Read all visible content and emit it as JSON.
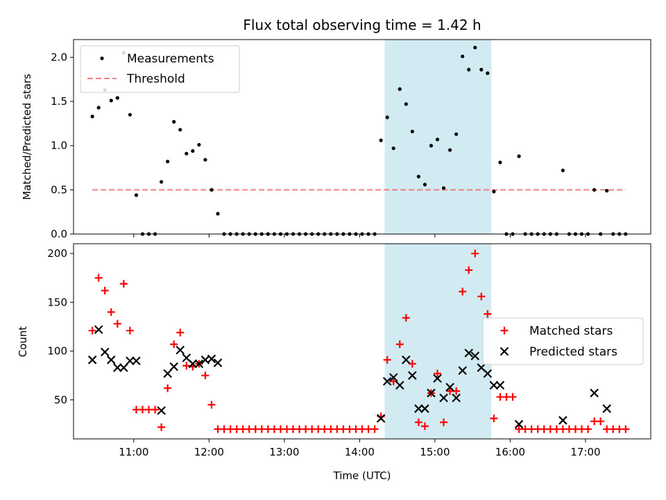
{
  "chart_data": [
    {
      "type": "scatter",
      "title": "Flux total observing time = 1.42 h",
      "ylabel": "Matched/Predicted stars",
      "xlabel": "",
      "ylim": [
        0,
        2.2
      ],
      "xlim": [
        "10:12",
        "17:52"
      ],
      "grid": false,
      "legend": "top-left",
      "highlight_span": {
        "start": "14:20",
        "end": "15:45",
        "color": "#add8e6"
      },
      "xticks": [
        "11:00",
        "12:00",
        "13:00",
        "14:00",
        "15:00",
        "16:00",
        "17:00"
      ],
      "yticks": [
        "0.0",
        "0.5",
        "1.0",
        "1.5",
        "2.0"
      ],
      "series": [
        {
          "name": "Measurements",
          "color": "#000000",
          "marker": "dot",
          "x": [
            "10:27",
            "10:32",
            "10:37",
            "10:42",
            "10:47",
            "10:52",
            "10:57",
            "11:02",
            "11:07",
            "11:12",
            "11:17",
            "11:22",
            "11:27",
            "11:32",
            "11:37",
            "11:42",
            "11:47",
            "11:52",
            "11:57",
            "12:02",
            "12:07",
            "12:12",
            "12:17",
            "12:22",
            "12:27",
            "12:32",
            "12:37",
            "12:42",
            "12:47",
            "12:52",
            "12:57",
            "13:02",
            "13:07",
            "13:12",
            "13:17",
            "13:22",
            "13:27",
            "13:32",
            "13:37",
            "13:42",
            "13:47",
            "13:52",
            "13:57",
            "14:02",
            "14:07",
            "14:12",
            "14:17",
            "14:22",
            "14:27",
            "14:32",
            "14:37",
            "14:42",
            "14:47",
            "14:52",
            "14:57",
            "15:02",
            "15:07",
            "15:12",
            "15:17",
            "15:22",
            "15:27",
            "15:32",
            "15:37",
            "15:42",
            "15:47",
            "15:52",
            "15:57",
            "16:02",
            "16:07",
            "16:12",
            "16:17",
            "16:22",
            "16:27",
            "16:32",
            "16:37",
            "16:42",
            "16:47",
            "16:52",
            "16:57",
            "17:02",
            "17:07",
            "17:12",
            "17:17",
            "17:22",
            "17:27",
            "17:32"
          ],
          "y": [
            1.33,
            1.43,
            1.63,
            1.51,
            1.54,
            2.05,
            1.35,
            0.44,
            0,
            0,
            0,
            0.59,
            0.82,
            1.27,
            1.18,
            0.91,
            0.94,
            1.01,
            0.84,
            0.5,
            0.23,
            0,
            0,
            0,
            0,
            0,
            0,
            0,
            0,
            0,
            0,
            0,
            0,
            0,
            0,
            0,
            0,
            0,
            0,
            0,
            0,
            0,
            0,
            0,
            0,
            0,
            1.06,
            1.32,
            0.97,
            1.64,
            1.47,
            1.16,
            0.65,
            0.56,
            1.0,
            1.07,
            0.52,
            0.95,
            1.13,
            2.01,
            1.86,
            2.11,
            1.86,
            1.82,
            0.48,
            0.81,
            0,
            0,
            0.88,
            0,
            0,
            0,
            0,
            0,
            0,
            0.72,
            0,
            0,
            0,
            0,
            0.5,
            0,
            0.49,
            0,
            0,
            0
          ]
        },
        {
          "name": "Threshold",
          "color": "#f08080",
          "line": "dashed",
          "x": [
            "10:27",
            "17:32"
          ],
          "y": [
            0.5,
            0.5
          ]
        }
      ]
    },
    {
      "type": "scatter",
      "title": "",
      "ylabel": "Count",
      "xlabel": "Time (UTC)",
      "ylim": [
        10,
        210
      ],
      "xlim": [
        "10:12",
        "17:52"
      ],
      "grid": false,
      "legend": "center-right",
      "highlight_span": {
        "start": "14:20",
        "end": "15:45",
        "color": "#add8e6"
      },
      "xticks": [
        "11:00",
        "12:00",
        "13:00",
        "14:00",
        "15:00",
        "16:00",
        "17:00"
      ],
      "yticks": [
        "50",
        "100",
        "150",
        "200"
      ],
      "x": [
        "10:27",
        "10:32",
        "10:37",
        "10:42",
        "10:47",
        "10:52",
        "10:57",
        "11:02",
        "11:07",
        "11:12",
        "11:17",
        "11:22",
        "11:27",
        "11:32",
        "11:37",
        "11:42",
        "11:47",
        "11:52",
        "11:57",
        "12:02",
        "12:07",
        "12:12",
        "12:17",
        "12:22",
        "12:27",
        "12:32",
        "12:37",
        "12:42",
        "12:47",
        "12:52",
        "12:57",
        "13:02",
        "13:07",
        "13:12",
        "13:17",
        "13:22",
        "13:27",
        "13:32",
        "13:37",
        "13:42",
        "13:47",
        "13:52",
        "13:57",
        "14:02",
        "14:07",
        "14:12",
        "14:17",
        "14:22",
        "14:27",
        "14:32",
        "14:37",
        "14:42",
        "14:47",
        "14:52",
        "14:57",
        "15:02",
        "15:07",
        "15:12",
        "15:17",
        "15:22",
        "15:27",
        "15:32",
        "15:37",
        "15:42",
        "15:47",
        "15:52",
        "15:57",
        "16:02",
        "16:07",
        "16:12",
        "16:17",
        "16:22",
        "16:27",
        "16:32",
        "16:37",
        "16:42",
        "16:47",
        "16:52",
        "16:57",
        "17:02",
        "17:07",
        "17:12",
        "17:17",
        "17:22",
        "17:27",
        "17:32"
      ],
      "series": [
        {
          "name": "Matched stars",
          "color": "#ff0000",
          "marker": "plus",
          "values": [
            121,
            175,
            162,
            140,
            128,
            169,
            121,
            40,
            40,
            40,
            40,
            22,
            62,
            107,
            119,
            85,
            84,
            87,
            75,
            45,
            20,
            20,
            20,
            20,
            20,
            20,
            20,
            20,
            20,
            20,
            20,
            20,
            20,
            20,
            20,
            20,
            20,
            20,
            20,
            20,
            20,
            20,
            20,
            20,
            20,
            20,
            33,
            91,
            69,
            107,
            134,
            87,
            27,
            23,
            57,
            77,
            27,
            59,
            59,
            161,
            183,
            200,
            156,
            138,
            31,
            53,
            53,
            53,
            20,
            20,
            20,
            20,
            20,
            20,
            20,
            20,
            20,
            20,
            20,
            20,
            28,
            28,
            20,
            20,
            20,
            20
          ]
        },
        {
          "name": "Predicted stars",
          "color": "#000000",
          "marker": "x",
          "values": [
            91,
            122,
            99,
            91,
            83,
            83,
            90,
            90,
            null,
            null,
            null,
            39,
            77,
            84,
            101,
            93,
            87,
            87,
            91,
            92,
            88,
            null,
            null,
            null,
            null,
            null,
            null,
            null,
            null,
            null,
            null,
            null,
            null,
            null,
            null,
            null,
            null,
            null,
            null,
            null,
            null,
            null,
            null,
            null,
            null,
            null,
            31,
            69,
            73,
            65,
            91,
            75,
            41,
            41,
            57,
            72,
            52,
            63,
            52,
            80,
            98,
            95,
            83,
            77,
            65,
            65,
            null,
            null,
            25,
            null,
            null,
            null,
            null,
            null,
            null,
            29,
            null,
            null,
            null,
            null,
            57,
            null,
            41,
            null,
            null,
            null
          ]
        }
      ]
    }
  ]
}
